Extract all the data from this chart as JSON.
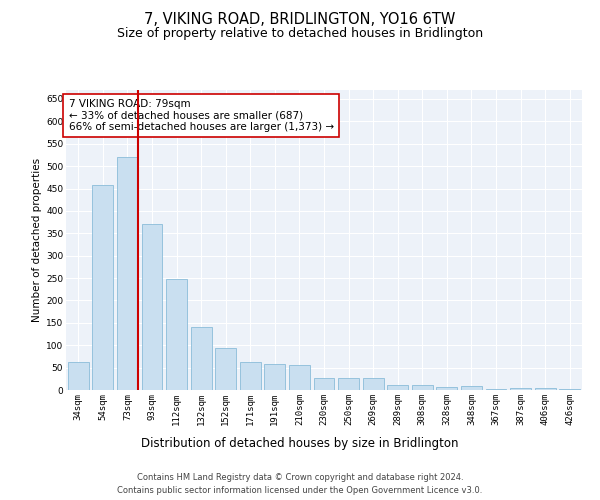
{
  "title": "7, VIKING ROAD, BRIDLINGTON, YO16 6TW",
  "subtitle": "Size of property relative to detached houses in Bridlington",
  "xlabel": "Distribution of detached houses by size in Bridlington",
  "ylabel": "Number of detached properties",
  "bar_color": "#c9dff0",
  "bar_edge_color": "#7ab3d4",
  "background_color": "#edf2f9",
  "grid_color": "#ffffff",
  "annotation_text": "7 VIKING ROAD: 79sqm\n← 33% of detached houses are smaller (687)\n66% of semi-detached houses are larger (1,373) →",
  "annotation_box_color": "#ffffff",
  "annotation_box_edge_color": "#cc0000",
  "vline_color": "#cc0000",
  "vline_x_index": 2,
  "categories": [
    "34sqm",
    "54sqm",
    "73sqm",
    "93sqm",
    "112sqm",
    "132sqm",
    "152sqm",
    "171sqm",
    "191sqm",
    "210sqm",
    "230sqm",
    "250sqm",
    "269sqm",
    "289sqm",
    "308sqm",
    "328sqm",
    "348sqm",
    "367sqm",
    "387sqm",
    "406sqm",
    "426sqm"
  ],
  "values": [
    62,
    457,
    520,
    370,
    248,
    140,
    93,
    62,
    57,
    55,
    26,
    26,
    26,
    11,
    11,
    6,
    8,
    3,
    4,
    4,
    3
  ],
  "ylim": [
    0,
    670
  ],
  "yticks": [
    0,
    50,
    100,
    150,
    200,
    250,
    300,
    350,
    400,
    450,
    500,
    550,
    600,
    650
  ],
  "footer": "Contains HM Land Registry data © Crown copyright and database right 2024.\nContains public sector information licensed under the Open Government Licence v3.0.",
  "title_fontsize": 10.5,
  "subtitle_fontsize": 9,
  "xlabel_fontsize": 8.5,
  "ylabel_fontsize": 7.5,
  "tick_fontsize": 6.5,
  "annotation_fontsize": 7.5,
  "footer_fontsize": 6.0
}
